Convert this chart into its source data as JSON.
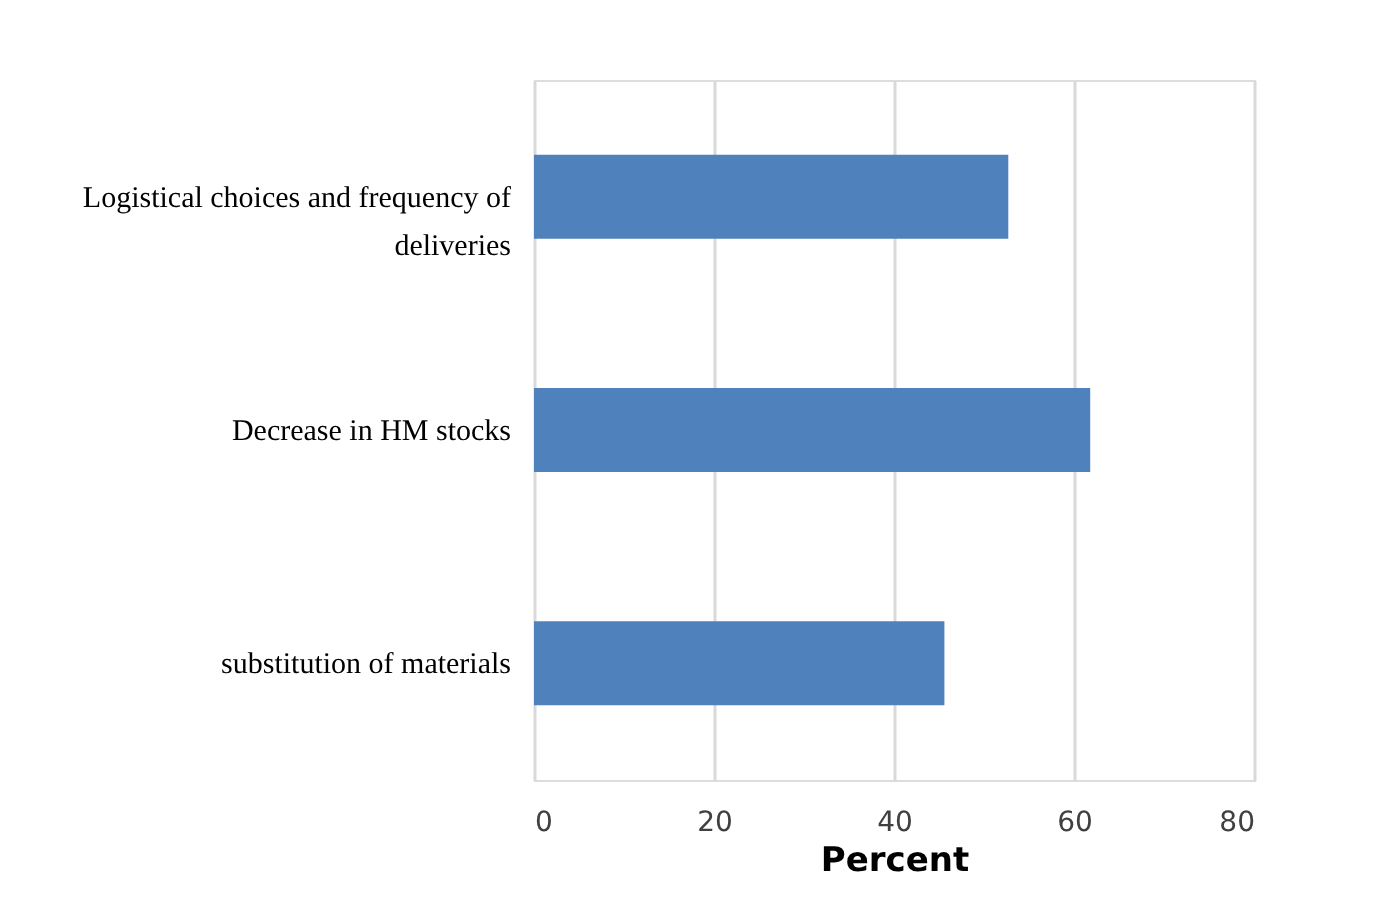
{
  "chart_data": {
    "type": "bar",
    "orientation": "horizontal",
    "xlabel": "Percent",
    "categories": [
      "Logistical choices and frequency of deliveries",
      "Decrease in HM stocks",
      "substitution of materials"
    ],
    "values": [
      52.7,
      61.8,
      45.6
    ],
    "color": "#4f81bd",
    "xlim": [
      0,
      80
    ],
    "xticks": [
      0,
      20,
      40,
      60,
      80
    ],
    "grid": "x"
  }
}
